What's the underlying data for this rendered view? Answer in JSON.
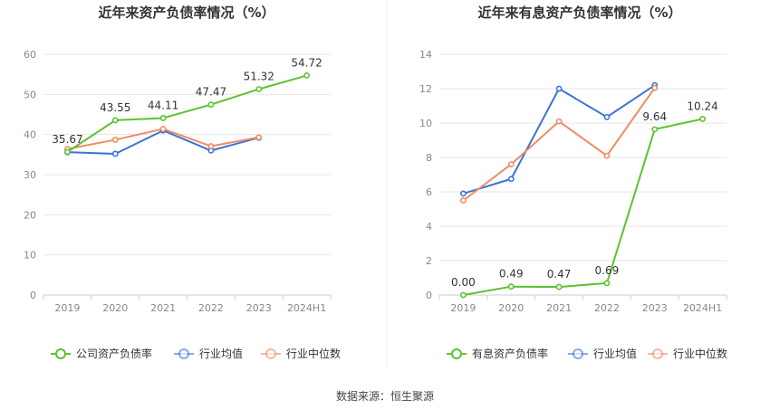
{
  "source_text": "数据来源：恒生聚源",
  "colors": {
    "company": "#5ec130",
    "average": "#3b73d6",
    "median": "#ef8c63",
    "grid": "#e6e6e6",
    "axis": "#cccccc",
    "tick": "#888888",
    "label": "#333333"
  },
  "chart_data": [
    {
      "type": "line",
      "title": "近年来资产负债率情况（%）",
      "categories": [
        "2019",
        "2020",
        "2021",
        "2022",
        "2023",
        "2024H1"
      ],
      "ylim": [
        0,
        60
      ],
      "yticks": [
        0,
        10,
        20,
        30,
        40,
        50,
        60
      ],
      "grid": true,
      "legend_position": "bottom",
      "series": [
        {
          "name": "公司资产负债率",
          "key": "company",
          "values": [
            35.67,
            43.55,
            44.11,
            47.47,
            51.32,
            54.72
          ],
          "labels": [
            "35.67",
            "43.55",
            "44.11",
            "47.47",
            "51.32",
            "54.72"
          ]
        },
        {
          "name": "行业均值",
          "key": "average",
          "values": [
            35.6,
            35.2,
            41.0,
            36.0,
            39.2,
            null
          ]
        },
        {
          "name": "行业中位数",
          "key": "median",
          "values": [
            36.4,
            38.7,
            41.4,
            37.1,
            39.3,
            null
          ]
        }
      ]
    },
    {
      "type": "line",
      "title": "近年来有息资产负债率情况（%）",
      "categories": [
        "2019",
        "2020",
        "2021",
        "2022",
        "2023",
        "2024H1"
      ],
      "ylim": [
        0,
        14
      ],
      "yticks": [
        0,
        2,
        4,
        6,
        8,
        10,
        12,
        14
      ],
      "grid": true,
      "legend_position": "bottom",
      "series": [
        {
          "name": "有息资产负债率",
          "key": "company",
          "values": [
            0.0,
            0.49,
            0.47,
            0.69,
            9.64,
            10.24
          ],
          "labels": [
            "0.00",
            "0.49",
            "0.47",
            "0.69",
            "9.64",
            "10.24"
          ]
        },
        {
          "name": "行业均值",
          "key": "average",
          "values": [
            5.9,
            6.75,
            12.0,
            10.35,
            12.2,
            null
          ]
        },
        {
          "name": "行业中位数",
          "key": "median",
          "values": [
            5.5,
            7.6,
            10.1,
            8.1,
            12.05,
            null
          ]
        }
      ]
    }
  ]
}
